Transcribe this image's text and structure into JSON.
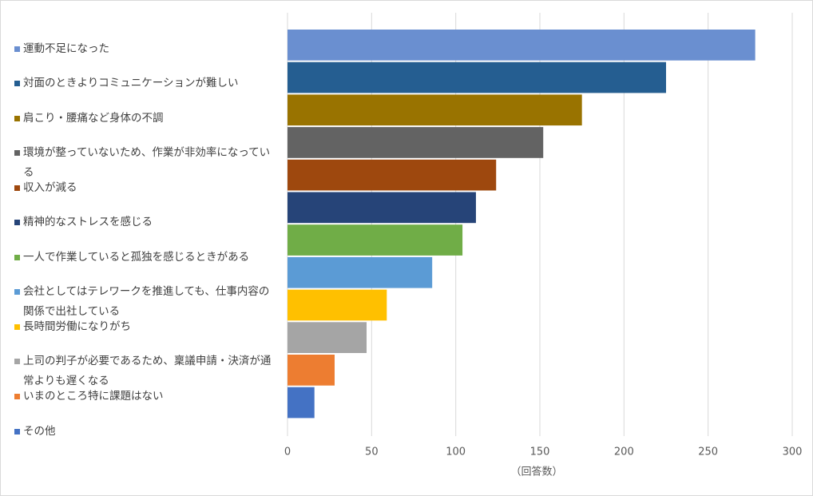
{
  "chart_data": {
    "type": "bar",
    "orientation": "horizontal",
    "categories": [
      "運動不足になった",
      "対面のときよりコミュニケーションが難しい",
      "肩こり・腰痛など身体の不調",
      "環境が整っていないため、作業が非効率になっている",
      "収入が減る",
      "精神的なストレスを感じる",
      "一人で作業していると孤独を感じるときがある",
      "会社としてはテレワークを推進しても、仕事内容の関係で出社している",
      "長時間労働になりがち",
      "上司の判子が必要であるため、稟議申請・決済が通常よりも遅くなる",
      "いまのところ特に課題はない",
      "その他"
    ],
    "values": [
      278,
      225,
      175,
      152,
      124,
      112,
      104,
      86,
      59,
      47,
      28,
      16
    ],
    "colors": [
      "#6a8fd0",
      "#255e91",
      "#997300",
      "#636363",
      "#9e480e",
      "#264478",
      "#70ad47",
      "#5b9bd5",
      "#ffc000",
      "#a5a5a5",
      "#ed7d31",
      "#4472c4"
    ],
    "x_label": "（回答数）",
    "xlim": [
      0,
      300
    ],
    "xticks": [
      0,
      50,
      100,
      150,
      200,
      250,
      300
    ],
    "grid": true,
    "legend": "left"
  }
}
